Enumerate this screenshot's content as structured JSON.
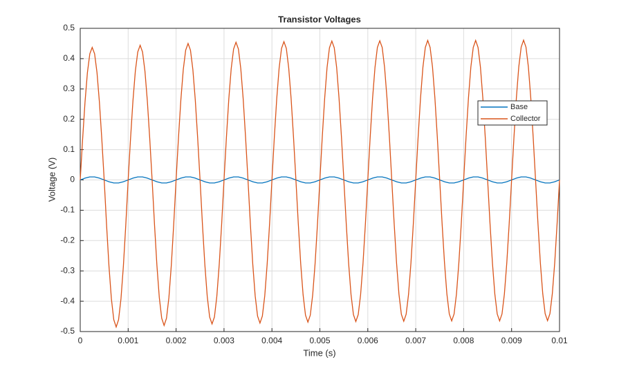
{
  "chart_data": {
    "type": "line",
    "title": "Transistor Voltages",
    "x_label": "Time (s)",
    "y_label": "Voltage (V)",
    "xlim": [
      0,
      0.01
    ],
    "xticks": [
      0,
      0.001,
      0.002,
      0.003,
      0.004,
      0.005,
      0.006,
      0.007,
      0.008,
      0.009,
      0.01
    ],
    "ylim": [
      -0.5,
      0.5
    ],
    "yticks": [
      -0.5,
      -0.4,
      -0.3,
      -0.2,
      -0.1,
      0,
      0.1,
      0.2,
      0.3,
      0.4,
      0.5
    ],
    "grid": true,
    "legend": "northeast",
    "x": [
      0,
      5e-05,
      0.0001,
      0.00015,
      0.0002,
      0.00025,
      0.0003,
      0.00035,
      0.0004,
      0.00045,
      0.0005,
      0.00055,
      0.0006,
      0.00065,
      0.0007,
      0.00075,
      0.0008,
      0.00085,
      0.0009,
      0.00095,
      0.001,
      0.00105,
      0.0011,
      0.00115,
      0.0012,
      0.00125,
      0.0013,
      0.00135,
      0.0014,
      0.00145,
      0.0015,
      0.00155,
      0.0016,
      0.00165,
      0.0017,
      0.00175,
      0.0018,
      0.00185,
      0.0019,
      0.00195,
      0.002,
      0.00205,
      0.0021,
      0.00215,
      0.0022,
      0.00225,
      0.0023,
      0.00235,
      0.0024,
      0.00245,
      0.0025,
      0.00255,
      0.0026,
      0.00265,
      0.0027,
      0.00275,
      0.0028,
      0.00285,
      0.0029,
      0.00295,
      0.003,
      0.00305,
      0.0031,
      0.00315,
      0.0032,
      0.00325,
      0.0033,
      0.00335,
      0.0034,
      0.00345,
      0.0035,
      0.00355,
      0.0036,
      0.00365,
      0.0037,
      0.00375,
      0.0038,
      0.00385,
      0.0039,
      0.00395,
      0.004,
      0.00405,
      0.0041,
      0.00415,
      0.0042,
      0.00425,
      0.0043,
      0.00435,
      0.0044,
      0.00445,
      0.0045,
      0.00455,
      0.0046,
      0.00465,
      0.0047,
      0.00475,
      0.0048,
      0.00485,
      0.0049,
      0.00495,
      0.005,
      0.00505,
      0.0051,
      0.00515,
      0.0052,
      0.00525,
      0.0053,
      0.00535,
      0.0054,
      0.00545,
      0.0055,
      0.00555,
      0.0056,
      0.00565,
      0.0057,
      0.00575,
      0.0058,
      0.00585,
      0.0059,
      0.00595,
      0.006,
      0.00605,
      0.0061,
      0.00615,
      0.0062,
      0.00625,
      0.0063,
      0.00635,
      0.0064,
      0.00645,
      0.0065,
      0.00655,
      0.0066,
      0.00665,
      0.0067,
      0.00675,
      0.0068,
      0.00685,
      0.0069,
      0.00695,
      0.007,
      0.00705,
      0.0071,
      0.00715,
      0.0072,
      0.00725,
      0.0073,
      0.00735,
      0.0074,
      0.00745,
      0.0075,
      0.00755,
      0.0076,
      0.00765,
      0.0077,
      0.00775,
      0.0078,
      0.00785,
      0.0079,
      0.00795,
      0.008,
      0.00805,
      0.0081,
      0.00815,
      0.0082,
      0.00825,
      0.0083,
      0.00835,
      0.0084,
      0.00845,
      0.0085,
      0.00855,
      0.0086,
      0.00865,
      0.0087,
      0.00875,
      0.0088,
      0.00885,
      0.0089,
      0.00895,
      0.009,
      0.00905,
      0.0091,
      0.00915,
      0.0092,
      0.00925,
      0.0093,
      0.00935,
      0.0094,
      0.00945,
      0.0095,
      0.00955,
      0.0096,
      0.00965,
      0.0097,
      0.00975,
      0.0098,
      0.00985,
      0.0099,
      0.00995,
      0.01
    ],
    "series": [
      {
        "name": "Base",
        "color": "#0072bd",
        "values": [
          0,
          0.003,
          0.006,
          0.008,
          0.01,
          0.01,
          0.01,
          0.008,
          0.006,
          0.003,
          0,
          -0.003,
          -0.006,
          -0.008,
          -0.01,
          -0.01,
          -0.01,
          -0.008,
          -0.006,
          -0.003,
          0,
          0.003,
          0.006,
          0.008,
          0.01,
          0.01,
          0.01,
          0.008,
          0.006,
          0.003,
          0,
          -0.003,
          -0.006,
          -0.008,
          -0.01,
          -0.01,
          -0.01,
          -0.008,
          -0.006,
          -0.003,
          0,
          0.003,
          0.006,
          0.008,
          0.01,
          0.01,
          0.01,
          0.008,
          0.006,
          0.003,
          0,
          -0.003,
          -0.006,
          -0.008,
          -0.01,
          -0.01,
          -0.01,
          -0.008,
          -0.006,
          -0.003,
          0,
          0.003,
          0.006,
          0.008,
          0.01,
          0.01,
          0.01,
          0.008,
          0.006,
          0.003,
          0,
          -0.003,
          -0.006,
          -0.008,
          -0.01,
          -0.01,
          -0.01,
          -0.008,
          -0.006,
          -0.003,
          0,
          0.003,
          0.006,
          0.008,
          0.01,
          0.01,
          0.01,
          0.008,
          0.006,
          0.003,
          0,
          -0.003,
          -0.006,
          -0.008,
          -0.01,
          -0.01,
          -0.01,
          -0.008,
          -0.006,
          -0.003,
          0,
          0.003,
          0.006,
          0.008,
          0.01,
          0.01,
          0.01,
          0.008,
          0.006,
          0.003,
          0,
          -0.003,
          -0.006,
          -0.008,
          -0.01,
          -0.01,
          -0.01,
          -0.008,
          -0.006,
          -0.003,
          0,
          0.003,
          0.006,
          0.008,
          0.01,
          0.01,
          0.01,
          0.008,
          0.006,
          0.003,
          0,
          -0.003,
          -0.006,
          -0.008,
          -0.01,
          -0.01,
          -0.01,
          -0.008,
          -0.006,
          -0.003,
          0,
          0.003,
          0.006,
          0.008,
          0.01,
          0.01,
          0.01,
          0.008,
          0.006,
          0.003,
          0,
          -0.003,
          -0.006,
          -0.008,
          -0.01,
          -0.01,
          -0.01,
          -0.008,
          -0.006,
          -0.003,
          0,
          0.003,
          0.006,
          0.008,
          0.01,
          0.01,
          0.01,
          0.008,
          0.006,
          0.003,
          0,
          -0.003,
          -0.006,
          -0.008,
          -0.01,
          -0.01,
          -0.01,
          -0.008,
          -0.006,
          -0.003,
          0,
          0.003,
          0.006,
          0.008,
          0.01,
          0.01,
          0.01,
          0.008,
          0.006,
          0.003,
          0,
          -0.003,
          -0.006,
          -0.008,
          -0.01,
          -0.01,
          -0.01,
          -0.008,
          -0.006,
          -0.003,
          0
        ]
      },
      {
        "name": "Collector",
        "color": "#d95319",
        "values": [
          0,
          0.135,
          0.257,
          0.354,
          0.416,
          0.437,
          0.416,
          0.354,
          0.257,
          0.135,
          0,
          -0.15,
          -0.285,
          -0.392,
          -0.461,
          -0.485,
          -0.461,
          -0.392,
          -0.285,
          -0.15,
          0,
          0.137,
          0.261,
          0.359,
          0.422,
          0.444,
          0.422,
          0.359,
          0.261,
          0.137,
          0,
          -0.148,
          -0.282,
          -0.388,
          -0.456,
          -0.48,
          -0.456,
          -0.388,
          -0.282,
          -0.148,
          0,
          0.139,
          0.265,
          0.364,
          0.428,
          0.45,
          0.428,
          0.364,
          0.265,
          0.139,
          0,
          -0.147,
          -0.279,
          -0.384,
          -0.452,
          -0.475,
          -0.452,
          -0.384,
          -0.279,
          -0.147,
          0,
          0.14,
          0.267,
          0.367,
          0.432,
          0.454,
          0.432,
          0.367,
          0.267,
          0.14,
          0,
          -0.146,
          -0.278,
          -0.382,
          -0.449,
          -0.472,
          -0.449,
          -0.382,
          -0.278,
          -0.146,
          0,
          0.141,
          0.268,
          0.369,
          0.434,
          0.456,
          0.434,
          0.369,
          0.268,
          0.141,
          0,
          -0.145,
          -0.276,
          -0.379,
          -0.446,
          -0.469,
          -0.446,
          -0.379,
          -0.276,
          -0.145,
          0,
          0.142,
          0.269,
          0.371,
          0.436,
          0.458,
          0.436,
          0.371,
          0.269,
          0.142,
          0,
          -0.144,
          -0.275,
          -0.378,
          -0.444,
          -0.467,
          -0.444,
          -0.378,
          -0.275,
          -0.144,
          0,
          0.142,
          0.27,
          0.371,
          0.437,
          0.459,
          0.437,
          0.371,
          0.27,
          0.142,
          0,
          -0.144,
          -0.274,
          -0.377,
          -0.443,
          -0.466,
          -0.443,
          -0.377,
          -0.274,
          -0.144,
          0,
          0.142,
          0.27,
          0.372,
          0.437,
          0.46,
          0.437,
          0.372,
          0.27,
          0.142,
          0,
          -0.144,
          -0.273,
          -0.376,
          -0.442,
          -0.465,
          -0.442,
          -0.376,
          -0.273,
          -0.144,
          0,
          0.142,
          0.27,
          0.372,
          0.437,
          0.46,
          0.437,
          0.372,
          0.27,
          0.142,
          0,
          -0.144,
          -0.273,
          -0.376,
          -0.442,
          -0.465,
          -0.442,
          -0.376,
          -0.273,
          -0.144,
          0,
          0.142,
          0.271,
          0.373,
          0.438,
          0.461,
          0.438,
          0.373,
          0.271,
          0.142,
          0,
          -0.143,
          -0.273,
          -0.375,
          -0.441,
          -0.464,
          -0.441,
          -0.375,
          -0.273,
          -0.143,
          0
        ]
      }
    ]
  }
}
